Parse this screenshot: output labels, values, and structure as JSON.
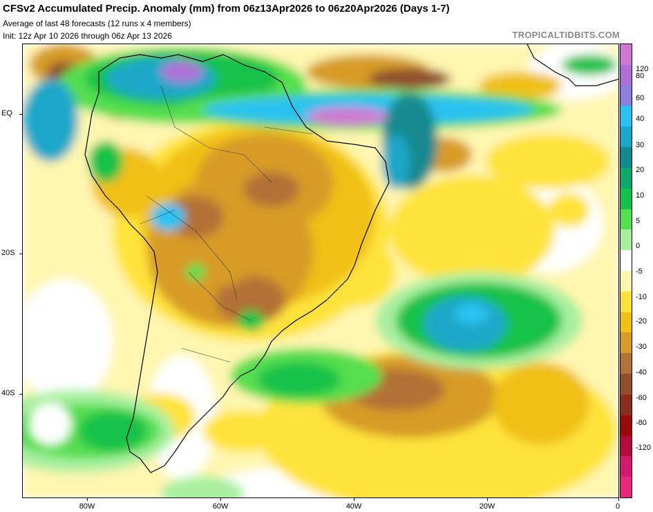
{
  "header": {
    "title": "CFSv2 Accumulated Precip. Anomaly (mm) from 06z13Apr2026 to 06z20Apr2026 (Days 1-7)",
    "subtitle": "Average of last 48 forecasts (12 runs x 4 members)",
    "init": "Init: 12z Apr 10 2026 through 06z Apr 13 2026",
    "credit": "TROPICALTIDBITS.COM"
  },
  "axes": {
    "lat_labels": [
      "EQ",
      "20S",
      "40S"
    ],
    "lon_labels": [
      "80W",
      "60W",
      "40W",
      "20W",
      "0"
    ]
  },
  "colorbar": {
    "labels": [
      "120",
      "80",
      "60",
      "40",
      "30",
      "20",
      "10",
      "5",
      "0",
      "-5",
      "-10",
      "-20",
      "-30",
      "-40",
      "-60",
      "-80",
      "-120"
    ],
    "colors": [
      "#d079d3",
      "#b06fd8",
      "#8b7fe0",
      "#2ac2f0",
      "#1ba7c9",
      "#138a8f",
      "#0fa86b",
      "#12c24a",
      "#55de4f",
      "#a8f0a0",
      "#ffffff",
      "#fff6b0",
      "#ffe33a",
      "#f0c012",
      "#d79b28",
      "#b27136",
      "#8e4f2e",
      "#8b2d1c",
      "#9a0a0a",
      "#b40d3c",
      "#d11a6b",
      "#e8287f"
    ]
  }
}
